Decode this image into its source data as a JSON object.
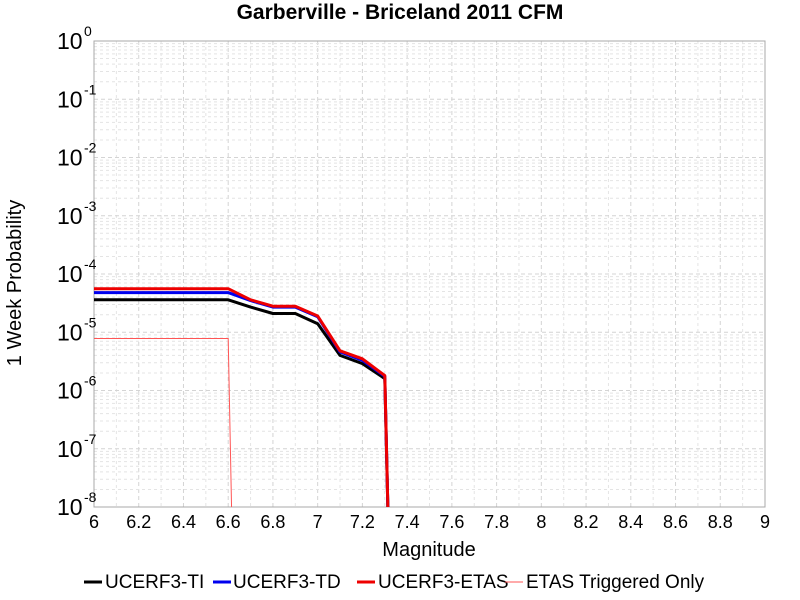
{
  "chart_data": {
    "type": "line",
    "title": "Garberville - Briceland 2011 CFM",
    "xlabel": "Magnitude",
    "ylabel": "1 Week Probability",
    "xlim": [
      6,
      9
    ],
    "ylim": [
      1e-08,
      1
    ],
    "yscale": "log",
    "grid": true,
    "legend_position": "bottom",
    "x_ticks": [
      "6",
      "6.2",
      "6.4",
      "6.6",
      "6.8",
      "7",
      "7.2",
      "7.4",
      "7.6",
      "7.8",
      "8",
      "8.2",
      "8.4",
      "8.6",
      "8.8",
      "9"
    ],
    "y_ticks": [
      {
        "base": "10",
        "exp": "0",
        "value": 1
      },
      {
        "base": "10",
        "exp": "-1",
        "value": 0.1
      },
      {
        "base": "10",
        "exp": "-2",
        "value": 0.01
      },
      {
        "base": "10",
        "exp": "-3",
        "value": 0.001
      },
      {
        "base": "10",
        "exp": "-4",
        "value": 0.0001
      },
      {
        "base": "10",
        "exp": "-5",
        "value": 1e-05
      },
      {
        "base": "10",
        "exp": "-6",
        "value": 1e-06
      },
      {
        "base": "10",
        "exp": "-7",
        "value": 1e-07
      },
      {
        "base": "10",
        "exp": "-8",
        "value": 1e-08
      }
    ],
    "series": [
      {
        "name": "UCERF3-TI",
        "color": "#000000",
        "x": [
          6.0,
          6.1,
          6.2,
          6.3,
          6.4,
          6.5,
          6.6,
          6.7,
          6.8,
          6.9,
          7.0,
          7.1,
          7.2,
          7.3,
          7.32
        ],
        "y": [
          3.6e-05,
          3.6e-05,
          3.6e-05,
          3.6e-05,
          3.6e-05,
          3.6e-05,
          3.6e-05,
          2.7e-05,
          2.1e-05,
          2.1e-05,
          1.4e-05,
          4e-06,
          2.9e-06,
          1.6e-06,
          1e-09
        ]
      },
      {
        "name": "UCERF3-TD",
        "color": "#0000ee",
        "x": [
          6.0,
          6.1,
          6.2,
          6.3,
          6.4,
          6.5,
          6.6,
          6.7,
          6.8,
          6.9,
          7.0,
          7.1,
          7.2,
          7.3,
          7.32
        ],
        "y": [
          4.8e-05,
          4.8e-05,
          4.8e-05,
          4.8e-05,
          4.8e-05,
          4.8e-05,
          4.8e-05,
          3.5e-05,
          2.7e-05,
          2.7e-05,
          1.85e-05,
          4.6e-06,
          3.3e-06,
          1.75e-06,
          1e-09
        ]
      },
      {
        "name": "UCERF3-ETAS",
        "color": "#ee0000",
        "x": [
          6.0,
          6.1,
          6.2,
          6.3,
          6.4,
          6.5,
          6.6,
          6.7,
          6.8,
          6.9,
          7.0,
          7.1,
          7.2,
          7.3,
          7.32
        ],
        "y": [
          5.6e-05,
          5.6e-05,
          5.6e-05,
          5.6e-05,
          5.6e-05,
          5.6e-05,
          5.6e-05,
          3.6e-05,
          2.8e-05,
          2.8e-05,
          1.9e-05,
          4.8e-06,
          3.5e-06,
          1.8e-06,
          1e-09
        ]
      },
      {
        "name": "ETAS Triggered Only",
        "color": "#ff5555",
        "x": [
          6.0,
          6.1,
          6.2,
          6.3,
          6.4,
          6.5,
          6.6,
          6.62
        ],
        "y": [
          7.8e-06,
          7.8e-06,
          7.8e-06,
          7.8e-06,
          7.8e-06,
          7.8e-06,
          7.8e-06,
          1e-09
        ]
      }
    ]
  }
}
